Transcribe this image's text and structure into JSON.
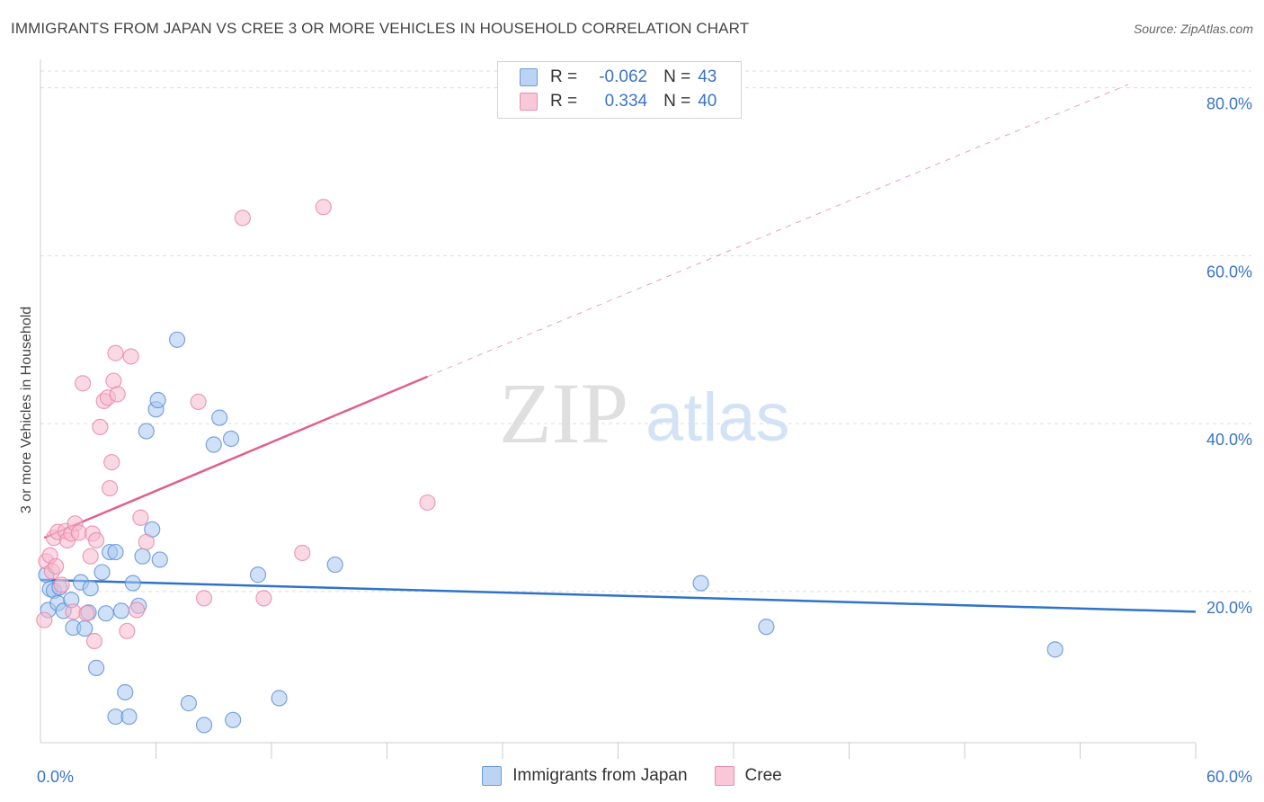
{
  "title": "IMMIGRANTS FROM JAPAN VS CREE 3 OR MORE VEHICLES IN HOUSEHOLD CORRELATION CHART",
  "source": "Source: ZipAtlas.com",
  "watermark": {
    "zip": "ZIP",
    "atlas": "atlas"
  },
  "legend": {
    "r_label": "R =",
    "n_label": "N =",
    "rows": [
      {
        "r": "-0.062",
        "n": "43"
      },
      {
        "r": "0.334",
        "n": "40"
      }
    ]
  },
  "colors": {
    "blue_fill": "#a9c8f0",
    "blue_stroke": "#5b8fd6",
    "blue_line": "#2f73c9",
    "pink_fill": "#f6b9cd",
    "pink_stroke": "#e887a6",
    "pink_line": "#e0608a",
    "axis_text": "#3a73c8",
    "grid": "#dddddd"
  },
  "chart_data": {
    "type": "scatter",
    "title": "IMMIGRANTS FROM JAPAN VS CREE 3 OR MORE VEHICLES IN HOUSEHOLD CORRELATION CHART",
    "xlabel": "",
    "ylabel": "3 or more Vehicles in Household",
    "xlim": [
      0,
      60
    ],
    "ylim": [
      2,
      82
    ],
    "x_tick_labels": [
      {
        "value": 0,
        "label": "0.0%"
      },
      {
        "value": 60,
        "label": "60.0%"
      }
    ],
    "y_ticks": [
      {
        "value": 20,
        "label": "20.0%"
      },
      {
        "value": 40,
        "label": "40.0%"
      },
      {
        "value": 60,
        "label": "60.0%"
      },
      {
        "value": 80,
        "label": "80.0%"
      }
    ],
    "legend_position": "bottom",
    "series": [
      {
        "name": "Immigrants from Japan",
        "color": "blue",
        "trend": {
          "x": [
            0,
            60
          ],
          "y": [
            21.4,
            17.6
          ],
          "dashed_to": null
        },
        "points": [
          [
            0.3,
            22
          ],
          [
            0.5,
            20.3
          ],
          [
            0.4,
            17.8
          ],
          [
            0.7,
            20.1
          ],
          [
            0.9,
            18.6
          ],
          [
            1.0,
            20.5
          ],
          [
            1.2,
            17.7
          ],
          [
            1.6,
            19.0
          ],
          [
            1.7,
            15.7
          ],
          [
            2.1,
            21.1
          ],
          [
            2.3,
            15.6
          ],
          [
            2.5,
            17.5
          ],
          [
            2.6,
            20.4
          ],
          [
            2.9,
            10.9
          ],
          [
            3.2,
            22.3
          ],
          [
            3.4,
            17.4
          ],
          [
            3.6,
            24.7
          ],
          [
            3.9,
            24.7
          ],
          [
            3.9,
            5.1
          ],
          [
            4.2,
            17.7
          ],
          [
            4.4,
            8.0
          ],
          [
            4.6,
            5.1
          ],
          [
            4.8,
            21.0
          ],
          [
            5.1,
            18.3
          ],
          [
            5.3,
            24.2
          ],
          [
            5.5,
            39.1
          ],
          [
            5.8,
            27.4
          ],
          [
            6.0,
            41.7
          ],
          [
            6.1,
            42.8
          ],
          [
            6.2,
            23.8
          ],
          [
            7.1,
            50.0
          ],
          [
            7.7,
            6.7
          ],
          [
            8.5,
            4.1
          ],
          [
            9.0,
            37.5
          ],
          [
            9.3,
            40.7
          ],
          [
            9.9,
            38.2
          ],
          [
            10.0,
            4.7
          ],
          [
            11.3,
            22.0
          ],
          [
            12.4,
            7.3
          ],
          [
            15.3,
            23.2
          ],
          [
            34.3,
            21.0
          ],
          [
            37.7,
            15.8
          ],
          [
            52.7,
            13.1
          ]
        ]
      },
      {
        "name": "Cree",
        "color": "pink",
        "trend": {
          "x": [
            0.2,
            20.1
          ],
          "y": [
            26.4,
            45.6
          ],
          "dashed_to": {
            "x": 56.5,
            "y": 80.4
          }
        },
        "points": [
          [
            0.2,
            16.6
          ],
          [
            0.3,
            23.6
          ],
          [
            0.5,
            24.3
          ],
          [
            0.6,
            22.4
          ],
          [
            0.7,
            26.4
          ],
          [
            0.8,
            23.0
          ],
          [
            0.9,
            27.1
          ],
          [
            1.1,
            20.8
          ],
          [
            1.3,
            27.2
          ],
          [
            1.4,
            26.1
          ],
          [
            1.6,
            26.9
          ],
          [
            1.7,
            17.6
          ],
          [
            1.8,
            28.1
          ],
          [
            2.0,
            27.0
          ],
          [
            2.2,
            44.8
          ],
          [
            2.4,
            17.4
          ],
          [
            2.6,
            24.2
          ],
          [
            2.7,
            26.9
          ],
          [
            2.8,
            14.1
          ],
          [
            2.9,
            26.1
          ],
          [
            3.1,
            39.6
          ],
          [
            3.3,
            42.7
          ],
          [
            3.5,
            43.1
          ],
          [
            3.6,
            32.3
          ],
          [
            3.7,
            35.4
          ],
          [
            3.8,
            45.1
          ],
          [
            3.9,
            48.4
          ],
          [
            4.0,
            43.5
          ],
          [
            4.5,
            15.3
          ],
          [
            4.7,
            48.0
          ],
          [
            5.0,
            17.8
          ],
          [
            5.2,
            28.8
          ],
          [
            5.5,
            25.9
          ],
          [
            8.2,
            42.6
          ],
          [
            8.5,
            19.2
          ],
          [
            10.5,
            64.5
          ],
          [
            11.6,
            19.2
          ],
          [
            13.6,
            24.6
          ],
          [
            14.7,
            65.8
          ],
          [
            20.1,
            30.6
          ]
        ]
      }
    ]
  }
}
